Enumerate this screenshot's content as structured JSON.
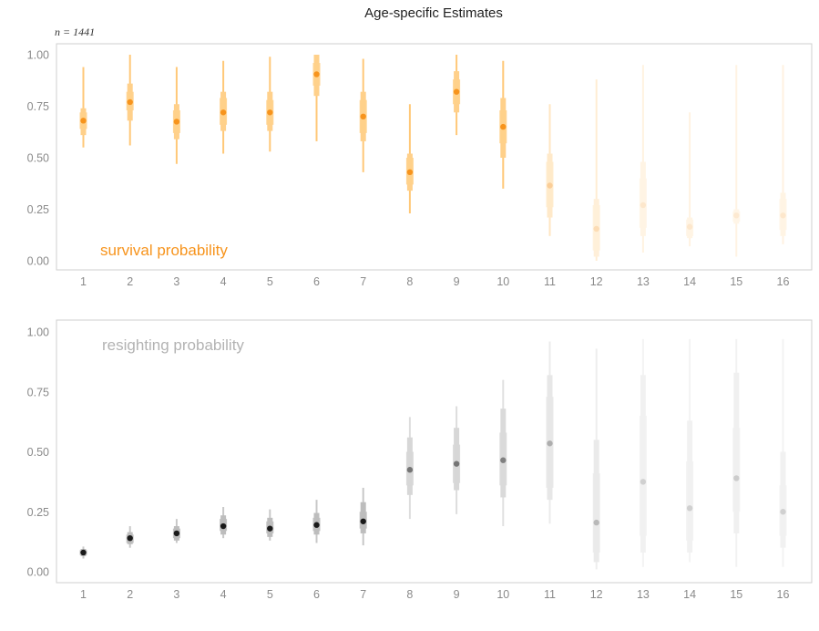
{
  "title": "Age-specific Estimates",
  "note": "n = 1441",
  "colors": {
    "survival": "#f7941d",
    "survival_interval": "#ffd08a",
    "resighting": "#1a1a1a",
    "resighting_interval": "#bdbdbd",
    "resighting_label": "#b3b3b3",
    "frame": "#cfcfcf",
    "tick_text": "#8a8a8a"
  },
  "chart_data": [
    {
      "type": "scatter",
      "label": "survival probability",
      "x": [
        1,
        2,
        3,
        4,
        5,
        6,
        7,
        8,
        9,
        10,
        11,
        12,
        13,
        14,
        15,
        16
      ],
      "x_tick_labels": [
        "1",
        "2",
        "3",
        "4",
        "5",
        "6",
        "7",
        "8",
        "9",
        "10",
        "11",
        "12",
        "13",
        "14",
        "15",
        "16"
      ],
      "y_tick_labels": [
        "0.00",
        "0.25",
        "0.50",
        "0.75",
        "1.00"
      ],
      "ylim": [
        0,
        1
      ],
      "grid": false,
      "estimate": [
        0.68,
        0.77,
        0.675,
        0.72,
        0.72,
        0.905,
        0.7,
        0.43,
        0.82,
        0.65,
        0.365,
        0.155,
        0.27,
        0.165,
        0.22,
        0.22
      ],
      "inner_interval": [
        [
          0.64,
          0.72
        ],
        [
          0.73,
          0.82
        ],
        [
          0.62,
          0.73
        ],
        [
          0.66,
          0.79
        ],
        [
          0.66,
          0.78
        ],
        [
          0.85,
          0.96
        ],
        [
          0.62,
          0.78
        ],
        [
          0.37,
          0.5
        ],
        [
          0.76,
          0.88
        ],
        [
          0.57,
          0.73
        ],
        [
          0.26,
          0.48
        ],
        [
          0.05,
          0.27
        ],
        [
          0.16,
          0.4
        ],
        [
          0.12,
          0.2
        ],
        [
          0.19,
          0.24
        ],
        [
          0.15,
          0.3
        ]
      ],
      "mid_interval": [
        [
          0.61,
          0.74
        ],
        [
          0.68,
          0.86
        ],
        [
          0.59,
          0.76
        ],
        [
          0.63,
          0.82
        ],
        [
          0.63,
          0.82
        ],
        [
          0.8,
          1.0
        ],
        [
          0.58,
          0.82
        ],
        [
          0.34,
          0.52
        ],
        [
          0.72,
          0.92
        ],
        [
          0.5,
          0.79
        ],
        [
          0.21,
          0.52
        ],
        [
          0.02,
          0.3
        ],
        [
          0.12,
          0.48
        ],
        [
          0.11,
          0.21
        ],
        [
          0.18,
          0.25
        ],
        [
          0.12,
          0.33
        ]
      ],
      "outer_interval": [
        [
          0.55,
          0.94
        ],
        [
          0.56,
          1.0
        ],
        [
          0.47,
          0.94
        ],
        [
          0.52,
          0.97
        ],
        [
          0.53,
          0.99
        ],
        [
          0.58,
          1.0
        ],
        [
          0.43,
          0.98
        ],
        [
          0.23,
          0.76
        ],
        [
          0.61,
          1.0
        ],
        [
          0.35,
          0.97
        ],
        [
          0.12,
          0.76
        ],
        [
          0.0,
          0.88
        ],
        [
          0.04,
          0.95
        ],
        [
          0.07,
          0.72
        ],
        [
          0.02,
          0.95
        ],
        [
          0.08,
          0.95
        ]
      ],
      "opacity": [
        1,
        1,
        1,
        1,
        1,
        1,
        1,
        1,
        1,
        1,
        0.45,
        0.32,
        0.22,
        0.22,
        0.2,
        0.22
      ]
    },
    {
      "type": "scatter",
      "label": "resighting probability",
      "x": [
        1,
        2,
        3,
        4,
        5,
        6,
        7,
        8,
        9,
        10,
        11,
        12,
        13,
        14,
        15,
        16
      ],
      "x_tick_labels": [
        "1",
        "2",
        "3",
        "4",
        "5",
        "6",
        "7",
        "8",
        "9",
        "10",
        "11",
        "12",
        "13",
        "14",
        "15",
        "16"
      ],
      "y_tick_labels": [
        "0.00",
        "0.25",
        "0.50",
        "0.75",
        "1.00"
      ],
      "ylim": [
        0,
        1
      ],
      "grid": false,
      "estimate": [
        0.08,
        0.14,
        0.16,
        0.19,
        0.18,
        0.195,
        0.21,
        0.425,
        0.45,
        0.465,
        0.535,
        0.205,
        0.375,
        0.265,
        0.39,
        0.25
      ],
      "inner_interval": [
        [
          0.07,
          0.09
        ],
        [
          0.12,
          0.155
        ],
        [
          0.14,
          0.18
        ],
        [
          0.17,
          0.22
        ],
        [
          0.16,
          0.21
        ],
        [
          0.17,
          0.225
        ],
        [
          0.18,
          0.25
        ],
        [
          0.36,
          0.5
        ],
        [
          0.37,
          0.53
        ],
        [
          0.36,
          0.58
        ],
        [
          0.35,
          0.73
        ],
        [
          0.08,
          0.41
        ],
        [
          0.15,
          0.65
        ],
        [
          0.13,
          0.46
        ],
        [
          0.25,
          0.6
        ],
        [
          0.15,
          0.36
        ]
      ],
      "mid_interval": [
        [
          0.065,
          0.095
        ],
        [
          0.115,
          0.165
        ],
        [
          0.13,
          0.19
        ],
        [
          0.155,
          0.235
        ],
        [
          0.145,
          0.225
        ],
        [
          0.155,
          0.245
        ],
        [
          0.16,
          0.29
        ],
        [
          0.32,
          0.56
        ],
        [
          0.34,
          0.6
        ],
        [
          0.31,
          0.68
        ],
        [
          0.3,
          0.82
        ],
        [
          0.04,
          0.55
        ],
        [
          0.08,
          0.82
        ],
        [
          0.08,
          0.63
        ],
        [
          0.16,
          0.83
        ],
        [
          0.1,
          0.5
        ]
      ],
      "outer_interval": [
        [
          0.055,
          0.105
        ],
        [
          0.1,
          0.19
        ],
        [
          0.12,
          0.22
        ],
        [
          0.14,
          0.27
        ],
        [
          0.13,
          0.26
        ],
        [
          0.12,
          0.3
        ],
        [
          0.11,
          0.35
        ],
        [
          0.22,
          0.645
        ],
        [
          0.24,
          0.69
        ],
        [
          0.19,
          0.8
        ],
        [
          0.2,
          0.96
        ],
        [
          0.01,
          0.93
        ],
        [
          0.02,
          0.97
        ],
        [
          0.04,
          0.97
        ],
        [
          0.02,
          0.97
        ],
        [
          0.02,
          0.97
        ]
      ],
      "opacity": [
        1,
        1,
        1,
        1,
        1,
        1,
        1,
        0.6,
        0.6,
        0.55,
        0.35,
        0.3,
        0.2,
        0.2,
        0.22,
        0.2
      ]
    }
  ]
}
